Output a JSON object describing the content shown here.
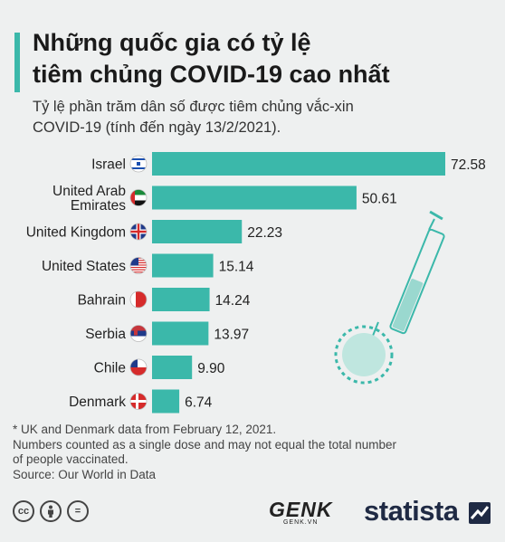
{
  "header": {
    "title_line1": "Những quốc gia có tỷ lệ",
    "title_line2": "tiêm chủng COVID-19 cao nhất",
    "subtitle_line1": "Tỷ lệ phần trăm dân số được tiêm chủng vắc-xin",
    "subtitle_line2": "COVID-19 (tính đến ngày 13/2/2021)."
  },
  "chart_data": {
    "type": "bar",
    "orientation": "horizontal",
    "title": "Những quốc gia có tỷ lệ tiêm chủng COVID-19 cao nhất",
    "subtitle": "Tỷ lệ phần trăm dân số được tiêm chủng vắc-xin COVID-19 (tính đến ngày 13/2/2021).",
    "categories": [
      "Israel",
      "United Arab Emirates",
      "United Kingdom",
      "United States",
      "Bahrain",
      "Serbia",
      "Chile",
      "Denmark"
    ],
    "category_lines": [
      [
        "Israel"
      ],
      [
        "United Arab",
        "Emirates"
      ],
      [
        "United Kingdom"
      ],
      [
        "United States"
      ],
      [
        "Bahrain"
      ],
      [
        "Serbia"
      ],
      [
        "Chile"
      ],
      [
        "Denmark"
      ]
    ],
    "values": [
      72.58,
      50.61,
      22.23,
      15.14,
      14.24,
      13.97,
      9.9,
      6.74
    ],
    "value_labels": [
      "72.58",
      "50.61",
      "22.23",
      "15.14",
      "14.24",
      "13.97",
      "9.90",
      "6.74"
    ],
    "flag_icons": [
      "israel-flag-icon",
      "uae-flag-icon",
      "uk-flag-icon",
      "us-flag-icon",
      "bahrain-flag-icon",
      "serbia-flag-icon",
      "chile-flag-icon",
      "denmark-flag-icon"
    ],
    "xlim": [
      0,
      75
    ],
    "grid": false,
    "legend": "none",
    "bar_color": "#3bb8aa"
  },
  "notes": {
    "note1": "* UK and Denmark data from February 12, 2021.",
    "note2": "Numbers counted as a single dose and may not equal the total number",
    "note3": "of people vaccinated.",
    "source": "Source: Our World in Data"
  },
  "footer": {
    "cc_icons": [
      "cc-icon",
      "by-icon",
      "nd-icon"
    ],
    "cc_label": "cc",
    "nd_label": "=",
    "genk_main": "GENK",
    "genk_sub": "GENK.VN",
    "statista": "statista"
  },
  "colors": {
    "accent": "#3bb8aa",
    "background": "#eef0f0",
    "brand_dark": "#1f2a44"
  }
}
